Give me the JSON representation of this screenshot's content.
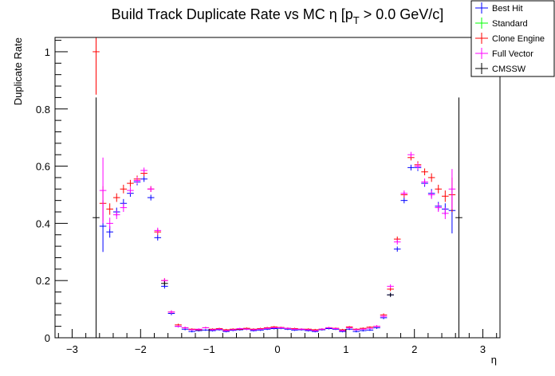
{
  "chart_data": {
    "type": "scatter",
    "title_main": "Build Track Duplicate Rate vs MC η [p",
    "title_sub": "T",
    "title_tail": " > 0.0 GeV/c]",
    "xlabel": "η",
    "ylabel": "Duplicate Rate",
    "xlim": [
      -3.25,
      3.25
    ],
    "ylim": [
      0,
      1.05
    ],
    "x_ticks": [
      -3,
      -2,
      -1,
      0,
      1,
      2,
      3
    ],
    "x_tick_labels": [
      "−3",
      "−2",
      "−1",
      "0",
      "1",
      "2",
      "3"
    ],
    "y_ticks": [
      0,
      0.2,
      0.4,
      0.6,
      0.8,
      1
    ],
    "y_tick_labels": [
      "0",
      "0.2",
      "0.4",
      "0.6",
      "0.8",
      "1"
    ],
    "grid": false,
    "legend_position": "top-right",
    "bin_half_width": 0.05,
    "series": [
      {
        "name": "Best Hit",
        "color": "#0000ff",
        "points": [
          [
            -2.55,
            0.39,
            0.09
          ],
          [
            -2.45,
            0.37,
            0.02
          ],
          [
            -2.35,
            0.44,
            0.015
          ],
          [
            -2.25,
            0.47,
            0.015
          ],
          [
            -2.15,
            0.505,
            0.012
          ],
          [
            -2.05,
            0.545,
            0.012
          ],
          [
            -1.95,
            0.555,
            0.01
          ],
          [
            -1.85,
            0.49,
            0.01
          ],
          [
            -1.75,
            0.35,
            0.01
          ],
          [
            -1.65,
            0.18,
            0.008
          ],
          [
            -1.55,
            0.085,
            0.006
          ],
          [
            -1.45,
            0.04,
            0.004
          ],
          [
            -1.35,
            0.03,
            0.004
          ],
          [
            -1.25,
            0.022,
            0.003
          ],
          [
            -1.15,
            0.025,
            0.003
          ],
          [
            -1.05,
            0.027,
            0.003
          ],
          [
            -0.95,
            0.025,
            0.003
          ],
          [
            -0.85,
            0.028,
            0.003
          ],
          [
            -0.75,
            0.022,
            0.003
          ],
          [
            -0.65,
            0.026,
            0.003
          ],
          [
            -0.55,
            0.028,
            0.003
          ],
          [
            -0.45,
            0.03,
            0.003
          ],
          [
            -0.35,
            0.025,
            0.003
          ],
          [
            -0.25,
            0.027,
            0.003
          ],
          [
            -0.15,
            0.03,
            0.003
          ],
          [
            -0.05,
            0.032,
            0.003
          ],
          [
            0.05,
            0.033,
            0.003
          ],
          [
            0.15,
            0.03,
            0.003
          ],
          [
            0.25,
            0.027,
            0.003
          ],
          [
            0.35,
            0.028,
            0.003
          ],
          [
            0.45,
            0.025,
            0.003
          ],
          [
            0.55,
            0.022,
            0.003
          ],
          [
            0.65,
            0.028,
            0.003
          ],
          [
            0.75,
            0.032,
            0.003
          ],
          [
            0.85,
            0.03,
            0.003
          ],
          [
            0.95,
            0.022,
            0.003
          ],
          [
            1.05,
            0.03,
            0.003
          ],
          [
            1.15,
            0.022,
            0.003
          ],
          [
            1.25,
            0.025,
            0.003
          ],
          [
            1.35,
            0.027,
            0.003
          ],
          [
            1.45,
            0.035,
            0.004
          ],
          [
            1.55,
            0.07,
            0.005
          ],
          [
            1.65,
            0.15,
            0.007
          ],
          [
            1.75,
            0.31,
            0.009
          ],
          [
            1.85,
            0.48,
            0.01
          ],
          [
            1.95,
            0.595,
            0.01
          ],
          [
            2.05,
            0.595,
            0.012
          ],
          [
            2.15,
            0.54,
            0.012
          ],
          [
            2.25,
            0.505,
            0.015
          ],
          [
            2.35,
            0.46,
            0.015
          ],
          [
            2.45,
            0.45,
            0.02
          ],
          [
            2.55,
            0.445,
            0.08
          ]
        ]
      },
      {
        "name": "Standard",
        "color": "#00ff00",
        "points": []
      },
      {
        "name": "Clone Engine",
        "color": "#ff0000",
        "points": [
          [
            -2.65,
            1.0,
            0.15
          ],
          [
            -2.55,
            0.47,
            0.06
          ],
          [
            -2.45,
            0.45,
            0.02
          ],
          [
            -2.35,
            0.49,
            0.015
          ],
          [
            -2.25,
            0.52,
            0.015
          ],
          [
            -2.15,
            0.54,
            0.012
          ],
          [
            -2.05,
            0.555,
            0.012
          ],
          [
            -1.95,
            0.575,
            0.01
          ],
          [
            -1.85,
            0.52,
            0.01
          ],
          [
            -1.75,
            0.37,
            0.01
          ],
          [
            -1.65,
            0.2,
            0.008
          ],
          [
            -1.55,
            0.09,
            0.006
          ],
          [
            -1.45,
            0.045,
            0.004
          ],
          [
            -1.35,
            0.035,
            0.004
          ],
          [
            -1.25,
            0.03,
            0.003
          ],
          [
            -1.15,
            0.028,
            0.003
          ],
          [
            -1.05,
            0.035,
            0.003
          ],
          [
            -0.95,
            0.03,
            0.003
          ],
          [
            -0.85,
            0.032,
            0.003
          ],
          [
            -0.75,
            0.028,
            0.003
          ],
          [
            -0.65,
            0.03,
            0.003
          ],
          [
            -0.55,
            0.03,
            0.003
          ],
          [
            -0.45,
            0.033,
            0.003
          ],
          [
            -0.35,
            0.03,
            0.003
          ],
          [
            -0.25,
            0.032,
            0.003
          ],
          [
            -0.15,
            0.035,
            0.003
          ],
          [
            -0.05,
            0.038,
            0.003
          ],
          [
            0.05,
            0.036,
            0.003
          ],
          [
            0.15,
            0.033,
            0.003
          ],
          [
            0.25,
            0.032,
            0.003
          ],
          [
            0.35,
            0.03,
            0.003
          ],
          [
            0.45,
            0.03,
            0.003
          ],
          [
            0.55,
            0.028,
            0.003
          ],
          [
            0.65,
            0.03,
            0.003
          ],
          [
            0.75,
            0.035,
            0.003
          ],
          [
            0.85,
            0.033,
            0.003
          ],
          [
            0.95,
            0.028,
            0.003
          ],
          [
            1.05,
            0.038,
            0.003
          ],
          [
            1.15,
            0.03,
            0.003
          ],
          [
            1.25,
            0.033,
            0.003
          ],
          [
            1.35,
            0.037,
            0.003
          ],
          [
            1.45,
            0.04,
            0.004
          ],
          [
            1.55,
            0.08,
            0.005
          ],
          [
            1.65,
            0.17,
            0.007
          ],
          [
            1.75,
            0.345,
            0.009
          ],
          [
            1.85,
            0.5,
            0.01
          ],
          [
            1.95,
            0.63,
            0.01
          ],
          [
            2.05,
            0.605,
            0.012
          ],
          [
            2.15,
            0.58,
            0.012
          ],
          [
            2.25,
            0.56,
            0.015
          ],
          [
            2.35,
            0.52,
            0.015
          ],
          [
            2.45,
            0.495,
            0.02
          ],
          [
            2.55,
            0.5,
            0.06
          ]
        ]
      },
      {
        "name": "Full Vector",
        "color": "#ff00ff",
        "points": [
          [
            -2.55,
            0.515,
            0.115
          ],
          [
            -2.45,
            0.4,
            0.02
          ],
          [
            -2.35,
            0.43,
            0.015
          ],
          [
            -2.25,
            0.455,
            0.015
          ],
          [
            -2.15,
            0.515,
            0.012
          ],
          [
            -2.05,
            0.55,
            0.012
          ],
          [
            -1.95,
            0.585,
            0.01
          ],
          [
            -1.85,
            0.52,
            0.01
          ],
          [
            -1.75,
            0.375,
            0.01
          ],
          [
            -1.65,
            0.2,
            0.008
          ],
          [
            -1.55,
            0.09,
            0.006
          ],
          [
            -1.45,
            0.04,
            0.004
          ],
          [
            -1.35,
            0.035,
            0.004
          ],
          [
            -1.25,
            0.028,
            0.003
          ],
          [
            -1.15,
            0.03,
            0.003
          ],
          [
            -1.05,
            0.035,
            0.003
          ],
          [
            -0.95,
            0.028,
            0.003
          ],
          [
            -0.85,
            0.03,
            0.003
          ],
          [
            -0.75,
            0.025,
            0.003
          ],
          [
            -0.65,
            0.028,
            0.003
          ],
          [
            -0.55,
            0.032,
            0.003
          ],
          [
            -0.45,
            0.03,
            0.003
          ],
          [
            -0.35,
            0.028,
            0.003
          ],
          [
            -0.25,
            0.03,
            0.003
          ],
          [
            -0.15,
            0.033,
            0.003
          ],
          [
            -0.05,
            0.035,
            0.003
          ],
          [
            0.05,
            0.035,
            0.003
          ],
          [
            0.15,
            0.033,
            0.003
          ],
          [
            0.25,
            0.03,
            0.003
          ],
          [
            0.35,
            0.03,
            0.003
          ],
          [
            0.45,
            0.028,
            0.003
          ],
          [
            0.55,
            0.025,
            0.003
          ],
          [
            0.65,
            0.03,
            0.003
          ],
          [
            0.75,
            0.035,
            0.003
          ],
          [
            0.85,
            0.032,
            0.003
          ],
          [
            0.95,
            0.025,
            0.003
          ],
          [
            1.05,
            0.035,
            0.003
          ],
          [
            1.15,
            0.028,
            0.003
          ],
          [
            1.25,
            0.03,
            0.003
          ],
          [
            1.35,
            0.033,
            0.003
          ],
          [
            1.45,
            0.04,
            0.004
          ],
          [
            1.55,
            0.075,
            0.005
          ],
          [
            1.65,
            0.18,
            0.007
          ],
          [
            1.75,
            0.335,
            0.009
          ],
          [
            1.85,
            0.505,
            0.01
          ],
          [
            1.95,
            0.64,
            0.01
          ],
          [
            2.05,
            0.6,
            0.012
          ],
          [
            2.15,
            0.545,
            0.012
          ],
          [
            2.25,
            0.5,
            0.015
          ],
          [
            2.35,
            0.455,
            0.015
          ],
          [
            2.45,
            0.435,
            0.02
          ],
          [
            2.55,
            0.52,
            0.07
          ]
        ]
      },
      {
        "name": "CMSSW",
        "color": "#000000",
        "points": [
          [
            -2.65,
            0.42,
            0.42
          ],
          [
            -1.65,
            0.19,
            0.008
          ],
          [
            1.65,
            0.15,
            0.007
          ],
          [
            2.65,
            0.42,
            0.42
          ]
        ]
      }
    ]
  }
}
